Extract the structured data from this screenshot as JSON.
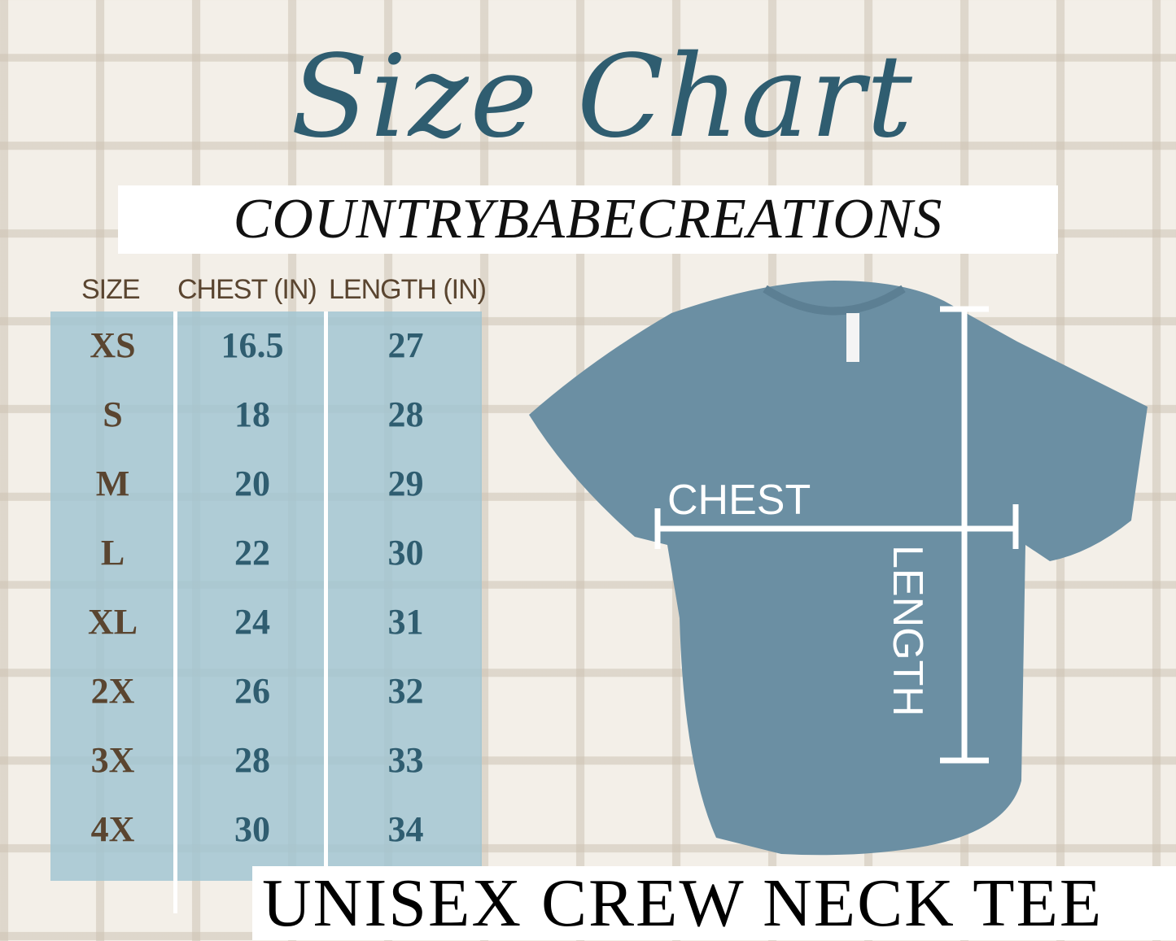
{
  "title": "Size Chart",
  "brand": "COUNTRYBABECREATIONS",
  "table": {
    "headers": [
      "SIZE",
      "CHEST (IN)",
      "LENGTH (IN)"
    ],
    "rows": [
      [
        "XS",
        "16.5",
        "27"
      ],
      [
        "S",
        "18",
        "28"
      ],
      [
        "M",
        "20",
        "29"
      ],
      [
        "L",
        "22",
        "30"
      ],
      [
        "XL",
        "24",
        "31"
      ],
      [
        "2X",
        "26",
        "32"
      ],
      [
        "3X",
        "28",
        "33"
      ],
      [
        "4X",
        "30",
        "34"
      ]
    ]
  },
  "diagram": {
    "chest_label": "CHEST",
    "length_label": "LENGTH",
    "shirt_color": "#6b8fa3"
  },
  "footer": "UNISEX CREW NECK TEE",
  "colors": {
    "title": "#2f5d70",
    "size_text": "#5a4530",
    "value_text": "#2f5d70",
    "table_bg": "#a0c4d2"
  }
}
